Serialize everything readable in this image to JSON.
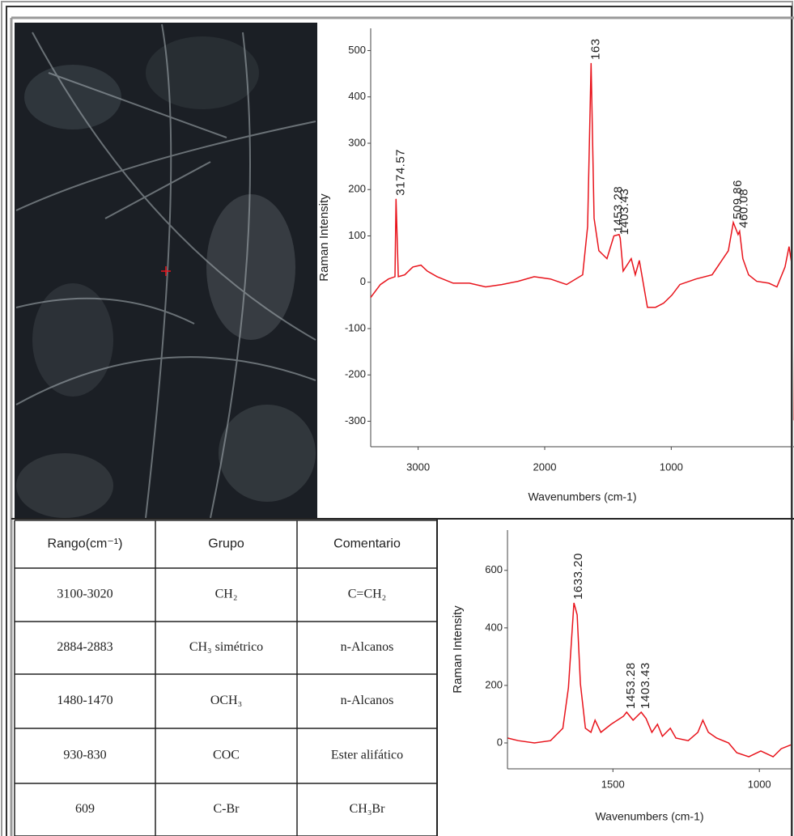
{
  "chart_data": [
    {
      "type": "line",
      "y_label": "Raman Intensity",
      "x_label": "Wavenumbers (cm-1)",
      "xlim": [
        3375,
        30
      ],
      "ylim": [
        -355,
        548
      ],
      "xticks": [
        3000,
        2000,
        1000
      ],
      "yticks": [
        -300,
        -200,
        -100,
        0,
        100,
        200,
        300,
        400,
        500
      ],
      "series": [
        {
          "color": "#e8141c",
          "x": [
            3375,
            3298,
            3234,
            3183,
            3174.57,
            3157,
            3106,
            3042,
            2978,
            2927,
            2850,
            2723,
            2595,
            2467,
            2339,
            2211,
            2083,
            1955,
            1827,
            1700,
            1661,
            1633.2,
            1610,
            1572,
            1508,
            1453.28,
            1412,
            1403.43,
            1380,
            1316,
            1284,
            1252,
            1188,
            1124,
            1060,
            996,
            932,
            804,
            677,
            549,
            509.86,
            472,
            460.08,
            434,
            389,
            325,
            229,
            165,
            101,
            69,
            44,
            38
          ],
          "values": [
            -33,
            -5,
            7,
            12,
            180,
            12,
            16,
            33,
            37,
            24,
            12,
            -2,
            -2,
            -10,
            -5,
            2,
            12,
            7,
            -5,
            16,
            120,
            473,
            138,
            68,
            51,
            100,
            103,
            95,
            24,
            51,
            16,
            47,
            -54,
            -54,
            -45,
            -28,
            -5,
            7,
            16,
            68,
            129,
            103,
            110,
            51,
            16,
            2,
            -2,
            -10,
            33,
            77,
            33,
            -298
          ]
        }
      ],
      "annotations": [
        {
          "label": "3174.57",
          "x": 3174.57
        },
        {
          "label": "163"
        },
        {
          "label": "1453.28",
          "x": 1453.28
        },
        {
          "label": "1403.43",
          "x": 1403.43
        },
        {
          "label": "509.86",
          "x": 509.86
        },
        {
          "label": "460.08",
          "x": 460.08
        }
      ]
    },
    {
      "type": "line",
      "y_label": "Raman Intensity",
      "x_label": "Wavenumbers (cm-1)",
      "xlim": [
        1860,
        890
      ],
      "ylim": [
        -90,
        740
      ],
      "xticks": [
        1500,
        1000
      ],
      "yticks": [
        0,
        200,
        400,
        600
      ],
      "series": [
        {
          "color": "#e8141c",
          "x": [
            1859,
            1823,
            1768,
            1713,
            1671,
            1652,
            1633.2,
            1622,
            1611,
            1594,
            1575,
            1561,
            1541,
            1506,
            1464,
            1453.28,
            1431,
            1403.43,
            1387,
            1367,
            1348,
            1331,
            1304,
            1285,
            1243,
            1210,
            1193,
            1174,
            1146,
            1105,
            1077,
            1036,
            995,
            953,
            925,
            890
          ],
          "values": [
            17,
            8,
            0,
            8,
            51,
            192,
            487,
            445,
            206,
            51,
            37,
            79,
            37,
            65,
            93,
            107,
            79,
            107,
            85,
            37,
            65,
            23,
            51,
            17,
            8,
            37,
            79,
            37,
            17,
            0,
            -34,
            -48,
            -28,
            -48,
            -20,
            -6
          ]
        }
      ],
      "annotations": [
        {
          "label": "1633.20",
          "x": 1633.2
        },
        {
          "label": "1453.28",
          "x": 1453.28
        },
        {
          "label": "1403.43",
          "x": 1403.43
        }
      ]
    }
  ],
  "table": {
    "header": [
      "Rango(cm⁻¹)",
      "Grupo",
      "Comentario"
    ],
    "rows": [
      [
        "3100-3020",
        "CH₂",
        "C=CH₂"
      ],
      [
        "2884-2883",
        "CH₃ simétrico",
        "n-Alcanos"
      ],
      [
        "1480-1470",
        "OCH₃",
        "n-Alcanos"
      ],
      [
        "930-830",
        "COC",
        "Ester alifático"
      ],
      [
        "609",
        "C-Br",
        "CH₃Br"
      ]
    ]
  }
}
